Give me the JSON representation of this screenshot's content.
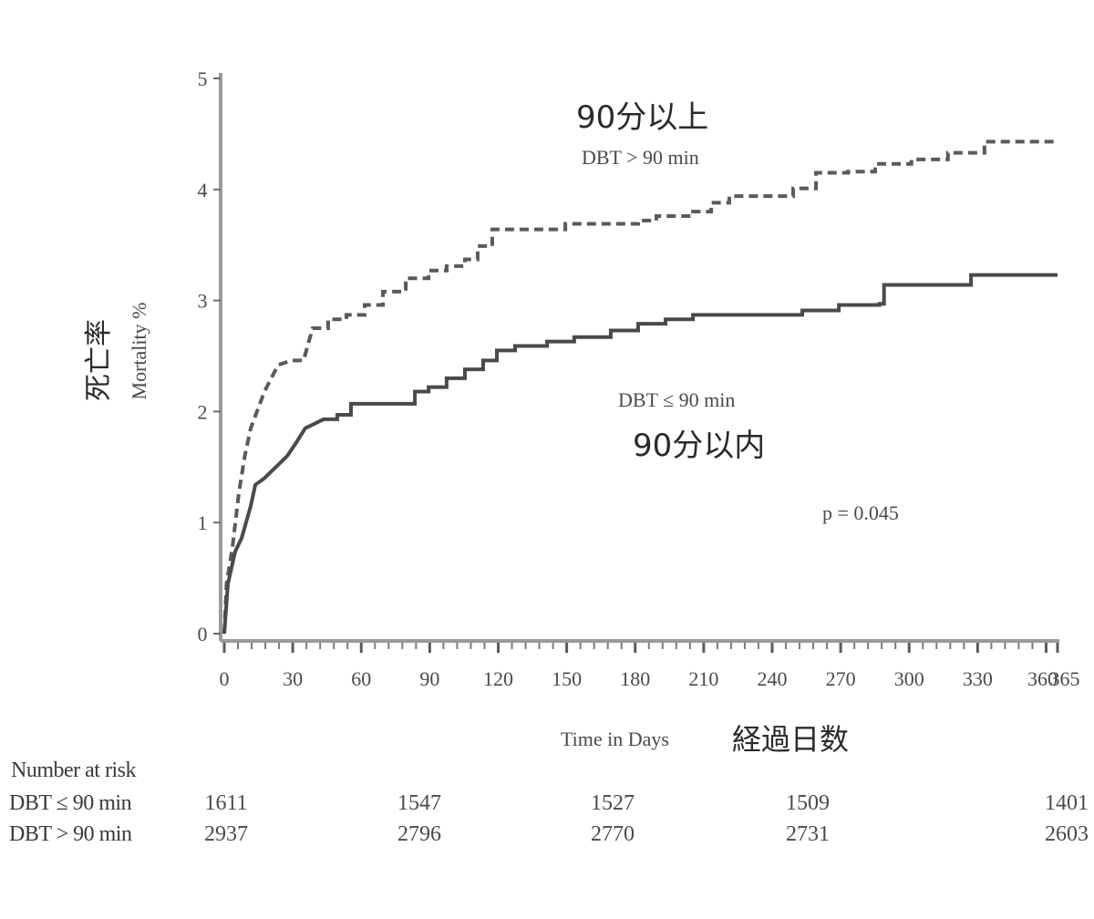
{
  "chart_data": {
    "type": "line",
    "subtype": "kaplan-meier-cumulative-mortality",
    "title": "",
    "xlabel": "Time in Days",
    "xlabel_jp": "経過日数",
    "ylabel": "Mortality %",
    "ylabel_jp": "死亡率",
    "xlim": [
      0,
      365
    ],
    "ylim": [
      0,
      5
    ],
    "grid": false,
    "x_ticks": [
      0,
      30,
      60,
      90,
      120,
      150,
      180,
      210,
      240,
      270,
      300,
      330,
      360,
      365
    ],
    "x_tick_labels": [
      "0",
      "30",
      "60",
      "90",
      "120",
      "150",
      "180",
      "210",
      "240",
      "270",
      "300",
      "330",
      "360",
      "365"
    ],
    "y_ticks": [
      0,
      1,
      2,
      3,
      4,
      5
    ],
    "y_tick_labels": [
      "0",
      "1",
      "2",
      "3",
      "4",
      "5"
    ],
    "annotations": {
      "p_value": "p = 0.045",
      "upper_label_jp": "90分以上",
      "upper_label_en": "DBT > 90 min",
      "lower_label_en": "DBT ≤ 90 min",
      "lower_label_jp": "90分以内"
    },
    "series": [
      {
        "name": "DBT > 90 min",
        "name_jp": "90分以上",
        "style": "dashed",
        "color": "#5a5a5a",
        "points": [
          [
            0,
            0
          ],
          [
            1,
            0.45
          ],
          [
            3.6,
            0.78
          ],
          [
            6.4,
            1.27
          ],
          [
            9,
            1.6
          ],
          [
            11.6,
            1.85
          ],
          [
            17.6,
            2.18
          ],
          [
            23.6,
            2.42
          ],
          [
            29.6,
            2.46
          ],
          [
            34.7,
            2.46
          ],
          [
            38.7,
            2.75
          ],
          [
            45.5,
            2.83
          ],
          [
            53.5,
            2.87
          ],
          [
            61.5,
            2.96
          ],
          [
            69.5,
            3.08
          ],
          [
            79.5,
            3.2
          ],
          [
            89.5,
            3.27
          ],
          [
            97.4,
            3.31
          ],
          [
            105.4,
            3.37
          ],
          [
            111,
            3.49
          ],
          [
            117.4,
            3.64
          ],
          [
            145.4,
            3.64
          ],
          [
            149.4,
            3.69
          ],
          [
            173.3,
            3.69
          ],
          [
            181.3,
            3.72
          ],
          [
            189.3,
            3.76
          ],
          [
            205.3,
            3.8
          ],
          [
            213.3,
            3.88
          ],
          [
            221.2,
            3.94
          ],
          [
            233.2,
            3.94
          ],
          [
            249.2,
            4.01
          ],
          [
            259.2,
            4.15
          ],
          [
            273.2,
            4.16
          ],
          [
            285.1,
            4.23
          ],
          [
            301,
            4.27
          ],
          [
            317,
            4.33
          ],
          [
            333,
            4.43
          ],
          [
            365,
            4.43
          ]
        ]
      },
      {
        "name": "DBT ≤ 90 min",
        "name_jp": "90分以内",
        "style": "solid",
        "color": "#4a4a4a",
        "points": [
          [
            0,
            0
          ],
          [
            1.6,
            0.45
          ],
          [
            4.8,
            0.74
          ],
          [
            7.6,
            0.86
          ],
          [
            11.6,
            1.15
          ],
          [
            13.6,
            1.34
          ],
          [
            17.6,
            1.4
          ],
          [
            21.6,
            1.48
          ],
          [
            27.6,
            1.6
          ],
          [
            31.5,
            1.72
          ],
          [
            35.5,
            1.85
          ],
          [
            43.5,
            1.93
          ],
          [
            49.5,
            1.97
          ],
          [
            55.5,
            2.07
          ],
          [
            77.5,
            2.07
          ],
          [
            83.5,
            2.18
          ],
          [
            89.5,
            2.22
          ],
          [
            97.4,
            2.3
          ],
          [
            105.4,
            2.38
          ],
          [
            113.4,
            2.46
          ],
          [
            119.4,
            2.55
          ],
          [
            127.4,
            2.59
          ],
          [
            141.4,
            2.63
          ],
          [
            153.3,
            2.67
          ],
          [
            169.3,
            2.73
          ],
          [
            181.3,
            2.79
          ],
          [
            193.3,
            2.83
          ],
          [
            205.3,
            2.87
          ],
          [
            249.2,
            2.87
          ],
          [
            253.2,
            2.91
          ],
          [
            269.2,
            2.96
          ],
          [
            287,
            2.97
          ],
          [
            289,
            3.14
          ],
          [
            325,
            3.14
          ],
          [
            327.1,
            3.23
          ],
          [
            365,
            3.23
          ]
        ]
      }
    ],
    "number_at_risk": {
      "title": "Number at risk",
      "time_points": [
        0,
        90,
        180,
        270,
        365
      ],
      "rows": [
        {
          "label": "DBT ≤ 90 min",
          "values": [
            "1611",
            "1547",
            "1527",
            "1509",
            "1401"
          ]
        },
        {
          "label": "DBT > 90 min",
          "values": [
            "2937",
            "2796",
            "2770",
            "2731",
            "2603"
          ]
        }
      ]
    }
  }
}
